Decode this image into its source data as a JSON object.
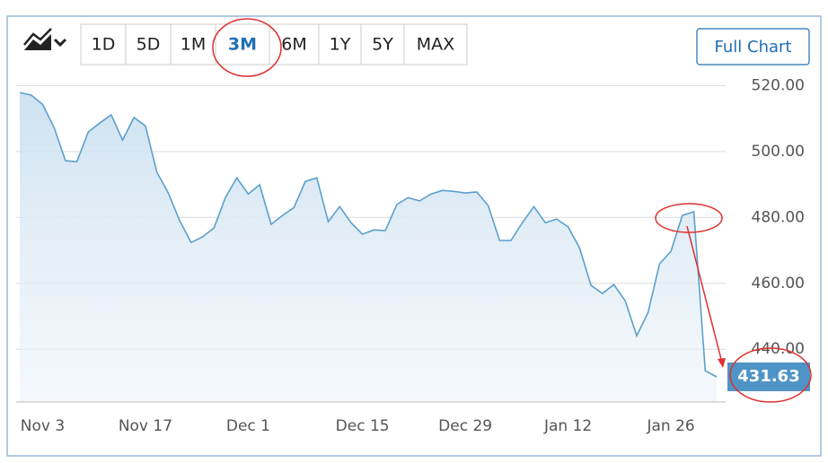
{
  "toolbar": {
    "ranges": [
      "1D",
      "5D",
      "1M",
      "3M",
      "6M",
      "1Y",
      "5Y",
      "MAX"
    ],
    "selected_index": 3,
    "full_chart": "Full Chart"
  },
  "chart_data": {
    "type": "line",
    "color": "#5aa0cc",
    "categories": [
      null,
      null,
      "Nov 3",
      null,
      null,
      null,
      null,
      null,
      null,
      null,
      null,
      "Nov 17",
      null,
      null,
      null,
      null,
      null,
      null,
      null,
      null,
      "Dec 1",
      null,
      null,
      null,
      null,
      null,
      null,
      null,
      null,
      null,
      "Dec 15",
      null,
      null,
      null,
      null,
      null,
      null,
      null,
      null,
      "Dec 29",
      null,
      null,
      null,
      null,
      null,
      null,
      null,
      null,
      "Jan 12",
      null,
      null,
      null,
      null,
      null,
      null,
      null,
      null,
      "Jan 26",
      null,
      null,
      null,
      null
    ],
    "values": [
      517.9,
      517.1,
      514.3,
      507.3,
      497.2,
      496.9,
      505.9,
      508.6,
      511.1,
      503.5,
      510.3,
      507.8,
      493.7,
      487.4,
      479.0,
      472.4,
      474.1,
      476.8,
      486.0,
      492.0,
      487.1,
      489.9,
      477.9,
      480.6,
      483.0,
      490.9,
      492.0,
      478.7,
      483.3,
      478.4,
      474.9,
      476.2,
      476.0,
      483.9,
      486.0,
      485.0,
      487.1,
      488.2,
      487.9,
      487.4,
      487.7,
      483.6,
      473.0,
      473.0,
      478.4,
      483.3,
      478.4,
      479.5,
      477.1,
      470.8,
      459.4,
      456.9,
      459.6,
      454.7,
      444.1,
      451.2,
      465.9,
      469.7,
      480.6,
      481.7,
      433.5,
      431.63
    ],
    "ylim": [
      424,
      522
    ],
    "yticks": [
      {
        "value": 440,
        "label": "440.00"
      },
      {
        "value": 460,
        "label": "460.00"
      },
      {
        "value": 480,
        "label": "480.00"
      },
      {
        "value": 500,
        "label": "500.00"
      },
      {
        "value": 520,
        "label": "520.00"
      }
    ],
    "grid": true
  }
}
